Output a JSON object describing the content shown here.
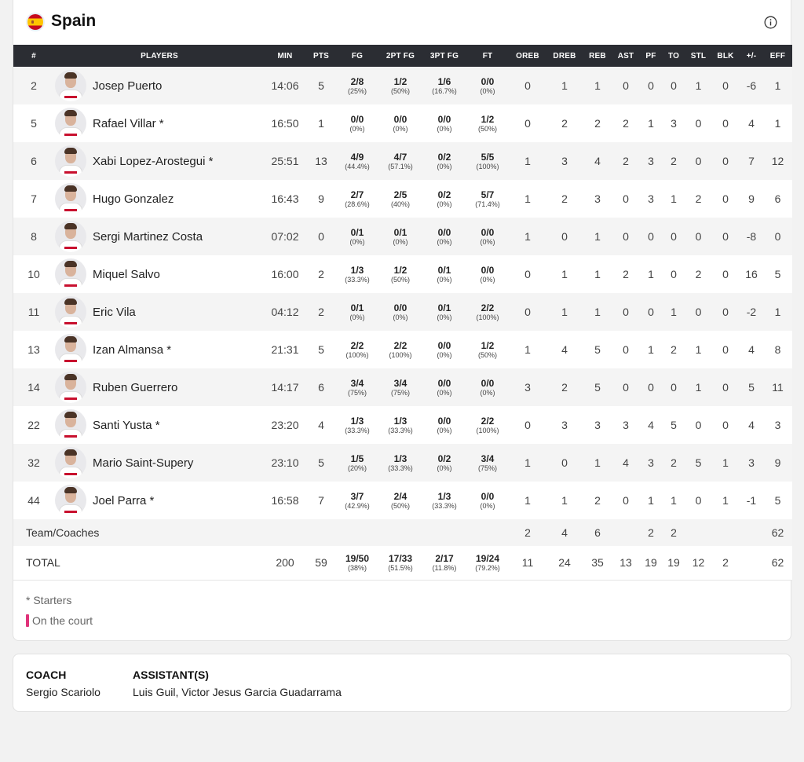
{
  "team": {
    "name": "Spain"
  },
  "columns": [
    "#",
    "PLAYERS",
    "MIN",
    "PTS",
    "FG",
    "2PT FG",
    "3PT FG",
    "FT",
    "OREB",
    "DREB",
    "REB",
    "AST",
    "PF",
    "TO",
    "STL",
    "BLK",
    "+/-",
    "EFF"
  ],
  "players": [
    {
      "num": "2",
      "name": "Josep Puerto",
      "min": "14:06",
      "pts": "5",
      "fg": "2/8",
      "fg_pct": "(25%)",
      "fg2": "1/2",
      "fg2_pct": "(50%)",
      "fg3": "1/6",
      "fg3_pct": "(16.7%)",
      "ft": "0/0",
      "ft_pct": "(0%)",
      "oreb": "0",
      "dreb": "1",
      "reb": "1",
      "ast": "0",
      "pf": "0",
      "to": "0",
      "stl": "1",
      "blk": "0",
      "pm": "-6",
      "eff": "1"
    },
    {
      "num": "5",
      "name": "Rafael Villar *",
      "min": "16:50",
      "pts": "1",
      "fg": "0/0",
      "fg_pct": "(0%)",
      "fg2": "0/0",
      "fg2_pct": "(0%)",
      "fg3": "0/0",
      "fg3_pct": "(0%)",
      "ft": "1/2",
      "ft_pct": "(50%)",
      "oreb": "0",
      "dreb": "2",
      "reb": "2",
      "ast": "2",
      "pf": "1",
      "to": "3",
      "stl": "0",
      "blk": "0",
      "pm": "4",
      "eff": "1"
    },
    {
      "num": "6",
      "name": "Xabi Lopez-Arostegui *",
      "min": "25:51",
      "pts": "13",
      "fg": "4/9",
      "fg_pct": "(44.4%)",
      "fg2": "4/7",
      "fg2_pct": "(57.1%)",
      "fg3": "0/2",
      "fg3_pct": "(0%)",
      "ft": "5/5",
      "ft_pct": "(100%)",
      "oreb": "1",
      "dreb": "3",
      "reb": "4",
      "ast": "2",
      "pf": "3",
      "to": "2",
      "stl": "0",
      "blk": "0",
      "pm": "7",
      "eff": "12"
    },
    {
      "num": "7",
      "name": "Hugo Gonzalez",
      "min": "16:43",
      "pts": "9",
      "fg": "2/7",
      "fg_pct": "(28.6%)",
      "fg2": "2/5",
      "fg2_pct": "(40%)",
      "fg3": "0/2",
      "fg3_pct": "(0%)",
      "ft": "5/7",
      "ft_pct": "(71.4%)",
      "oreb": "1",
      "dreb": "2",
      "reb": "3",
      "ast": "0",
      "pf": "3",
      "to": "1",
      "stl": "2",
      "blk": "0",
      "pm": "9",
      "eff": "6"
    },
    {
      "num": "8",
      "name": "Sergi Martinez Costa",
      "min": "07:02",
      "pts": "0",
      "fg": "0/1",
      "fg_pct": "(0%)",
      "fg2": "0/1",
      "fg2_pct": "(0%)",
      "fg3": "0/0",
      "fg3_pct": "(0%)",
      "ft": "0/0",
      "ft_pct": "(0%)",
      "oreb": "1",
      "dreb": "0",
      "reb": "1",
      "ast": "0",
      "pf": "0",
      "to": "0",
      "stl": "0",
      "blk": "0",
      "pm": "-8",
      "eff": "0"
    },
    {
      "num": "10",
      "name": "Miquel Salvo",
      "min": "16:00",
      "pts": "2",
      "fg": "1/3",
      "fg_pct": "(33.3%)",
      "fg2": "1/2",
      "fg2_pct": "(50%)",
      "fg3": "0/1",
      "fg3_pct": "(0%)",
      "ft": "0/0",
      "ft_pct": "(0%)",
      "oreb": "0",
      "dreb": "1",
      "reb": "1",
      "ast": "2",
      "pf": "1",
      "to": "0",
      "stl": "2",
      "blk": "0",
      "pm": "16",
      "eff": "5"
    },
    {
      "num": "11",
      "name": "Eric Vila",
      "min": "04:12",
      "pts": "2",
      "fg": "0/1",
      "fg_pct": "(0%)",
      "fg2": "0/0",
      "fg2_pct": "(0%)",
      "fg3": "0/1",
      "fg3_pct": "(0%)",
      "ft": "2/2",
      "ft_pct": "(100%)",
      "oreb": "0",
      "dreb": "1",
      "reb": "1",
      "ast": "0",
      "pf": "0",
      "to": "1",
      "stl": "0",
      "blk": "0",
      "pm": "-2",
      "eff": "1"
    },
    {
      "num": "13",
      "name": "Izan Almansa *",
      "min": "21:31",
      "pts": "5",
      "fg": "2/2",
      "fg_pct": "(100%)",
      "fg2": "2/2",
      "fg2_pct": "(100%)",
      "fg3": "0/0",
      "fg3_pct": "(0%)",
      "ft": "1/2",
      "ft_pct": "(50%)",
      "oreb": "1",
      "dreb": "4",
      "reb": "5",
      "ast": "0",
      "pf": "1",
      "to": "2",
      "stl": "1",
      "blk": "0",
      "pm": "4",
      "eff": "8"
    },
    {
      "num": "14",
      "name": "Ruben Guerrero",
      "min": "14:17",
      "pts": "6",
      "fg": "3/4",
      "fg_pct": "(75%)",
      "fg2": "3/4",
      "fg2_pct": "(75%)",
      "fg3": "0/0",
      "fg3_pct": "(0%)",
      "ft": "0/0",
      "ft_pct": "(0%)",
      "oreb": "3",
      "dreb": "2",
      "reb": "5",
      "ast": "0",
      "pf": "0",
      "to": "0",
      "stl": "1",
      "blk": "0",
      "pm": "5",
      "eff": "11"
    },
    {
      "num": "22",
      "name": "Santi Yusta *",
      "min": "23:20",
      "pts": "4",
      "fg": "1/3",
      "fg_pct": "(33.3%)",
      "fg2": "1/3",
      "fg2_pct": "(33.3%)",
      "fg3": "0/0",
      "fg3_pct": "(0%)",
      "ft": "2/2",
      "ft_pct": "(100%)",
      "oreb": "0",
      "dreb": "3",
      "reb": "3",
      "ast": "3",
      "pf": "4",
      "to": "5",
      "stl": "0",
      "blk": "0",
      "pm": "4",
      "eff": "3"
    },
    {
      "num": "32",
      "name": "Mario Saint-Supery",
      "min": "23:10",
      "pts": "5",
      "fg": "1/5",
      "fg_pct": "(20%)",
      "fg2": "1/3",
      "fg2_pct": "(33.3%)",
      "fg3": "0/2",
      "fg3_pct": "(0%)",
      "ft": "3/4",
      "ft_pct": "(75%)",
      "oreb": "1",
      "dreb": "0",
      "reb": "1",
      "ast": "4",
      "pf": "3",
      "to": "2",
      "stl": "5",
      "blk": "1",
      "pm": "3",
      "eff": "9"
    },
    {
      "num": "44",
      "name": "Joel Parra *",
      "min": "16:58",
      "pts": "7",
      "fg": "3/7",
      "fg_pct": "(42.9%)",
      "fg2": "2/4",
      "fg2_pct": "(50%)",
      "fg3": "1/3",
      "fg3_pct": "(33.3%)",
      "ft": "0/0",
      "ft_pct": "(0%)",
      "oreb": "1",
      "dreb": "1",
      "reb": "2",
      "ast": "0",
      "pf": "1",
      "to": "1",
      "stl": "0",
      "blk": "1",
      "pm": "-1",
      "eff": "5"
    }
  ],
  "team_coaches": {
    "label": "Team/Coaches",
    "oreb": "2",
    "dreb": "4",
    "reb": "6",
    "ast": "",
    "pf": "2",
    "to": "2",
    "stl": "",
    "blk": "",
    "pm": "",
    "eff": "62"
  },
  "total": {
    "label": "TOTAL",
    "min": "200",
    "pts": "59",
    "fg": "19/50",
    "fg_pct": "(38%)",
    "fg2": "17/33",
    "fg2_pct": "(51.5%)",
    "fg3": "2/17",
    "fg3_pct": "(11.8%)",
    "ft": "19/24",
    "ft_pct": "(79.2%)",
    "oreb": "11",
    "dreb": "24",
    "reb": "35",
    "ast": "13",
    "pf": "19",
    "to": "19",
    "stl": "12",
    "blk": "2",
    "pm": "",
    "eff": "62"
  },
  "legend": {
    "starters": "* Starters",
    "on_court": "On the court",
    "on_court_color": "#e0337a"
  },
  "coach": {
    "title": "COACH",
    "name": "Sergio Scariolo",
    "assistants_title": "ASSISTANT(S)",
    "assistants": "Luis Guil, Victor Jesus Garcia Guadarrama"
  }
}
